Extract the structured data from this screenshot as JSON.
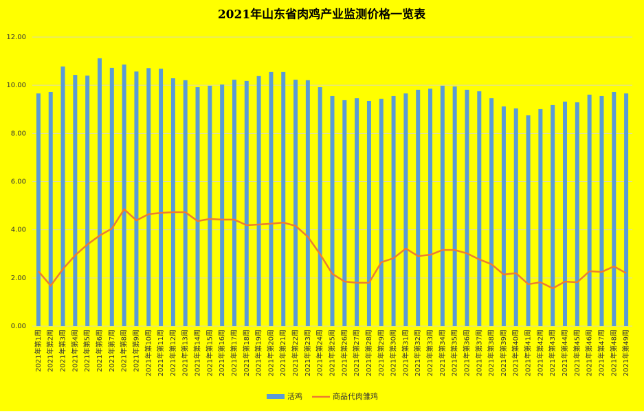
{
  "chart_data": {
    "type": "bar",
    "title": "2021年山东省肉鸡产业监测价格一览表",
    "categories": [
      "2021年第1周",
      "2021年第2周",
      "2021年第3周",
      "2021年第4周",
      "2021年第5周",
      "2021年第6周",
      "2021年第7周",
      "2021年第8周",
      "2021年第9周",
      "2021年第10周",
      "2021年第11周",
      "2021年第12周",
      "2021年第13周",
      "2021年第14周",
      "2021年第15周",
      "2021年第16周",
      "2021年第17周",
      "2021年第18周",
      "2021年第19周",
      "2021年第20周",
      "2021年第21周",
      "2021年第22周",
      "2021年第23周",
      "2021年第24周",
      "2021年第25周",
      "2021年第26周",
      "2021年第27周",
      "2021年第28周",
      "2021年第29周",
      "2021年第30周",
      "2021年第31周",
      "2021年第32周",
      "2021年第33周",
      "2021年第34周",
      "2021年第35周",
      "2021年第36周",
      "2021年第37周",
      "2021年第38周",
      "2021年第39周",
      "2021年第40周",
      "2021年第41周",
      "2021年第42周",
      "2021年第43周",
      "2021年第44周",
      "2021年第45周",
      "2021年第46周",
      "2021年第47周",
      "2021年第48周",
      "2021年第49周"
    ],
    "series": [
      {
        "name": "活鸡",
        "type": "bar",
        "color": "#5b9bd5",
        "values": [
          9.66,
          9.72,
          10.78,
          10.43,
          10.4,
          11.12,
          10.72,
          10.86,
          10.57,
          10.71,
          10.69,
          10.29,
          10.21,
          9.92,
          9.98,
          10.03,
          10.23,
          10.18,
          10.38,
          10.55,
          10.55,
          10.23,
          10.21,
          9.92,
          9.55,
          9.38,
          9.46,
          9.35,
          9.44,
          9.55,
          9.66,
          9.81,
          9.86,
          9.98,
          9.95,
          9.81,
          9.75,
          9.46,
          9.12,
          9.04,
          8.75,
          9.01,
          9.18,
          9.32,
          9.29,
          9.61,
          9.55,
          9.72,
          9.66
        ]
      },
      {
        "name": "商品代肉雏鸡",
        "type": "line",
        "color": "#ed7d31",
        "values": [
          2.28,
          1.68,
          2.37,
          2.94,
          3.39,
          3.76,
          4.05,
          4.85,
          4.39,
          4.65,
          4.7,
          4.73,
          4.73,
          4.36,
          4.45,
          4.42,
          4.42,
          4.19,
          4.22,
          4.25,
          4.3,
          4.16,
          3.71,
          2.99,
          2.17,
          1.85,
          1.8,
          1.8,
          2.65,
          2.82,
          3.22,
          2.91,
          2.96,
          3.16,
          3.16,
          3.02,
          2.77,
          2.57,
          2.14,
          2.2,
          1.74,
          1.82,
          1.57,
          1.85,
          1.82,
          2.28,
          2.25,
          2.48,
          2.2
        ]
      }
    ],
    "ylim": [
      0,
      12
    ],
    "yticks": [
      {
        "value": 0,
        "label": "0.00"
      },
      {
        "value": 2,
        "label": "2.00"
      },
      {
        "value": 4,
        "label": "4.00"
      },
      {
        "value": 6,
        "label": "6.00"
      },
      {
        "value": 8,
        "label": "8.00"
      },
      {
        "value": 10,
        "label": "10.00"
      },
      {
        "value": 12,
        "label": "12.00"
      }
    ],
    "grid": true,
    "legend": "bottom",
    "background": "#ffff00"
  }
}
